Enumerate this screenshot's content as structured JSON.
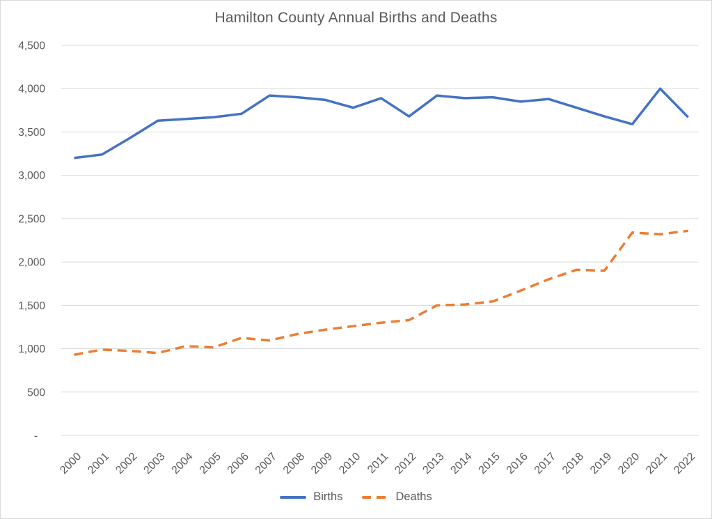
{
  "chart_data": {
    "type": "line",
    "title": "Hamilton County Annual Births and Deaths",
    "categories": [
      "2000",
      "2001",
      "2002",
      "2003",
      "2004",
      "2005",
      "2006",
      "2007",
      "2008",
      "2009",
      "2010",
      "2011",
      "2012",
      "2013",
      "2014",
      "2015",
      "2016",
      "2017",
      "2018",
      "2019",
      "2020",
      "2021",
      "2022"
    ],
    "series": [
      {
        "name": "Births",
        "color": "#4472C4",
        "line_style": "solid",
        "values": [
          3200,
          3240,
          3430,
          3630,
          3650,
          3670,
          3710,
          3920,
          3900,
          3870,
          3780,
          3890,
          3680,
          3920,
          3890,
          3900,
          3850,
          3880,
          3780,
          3680,
          3590,
          4000,
          3670
        ]
      },
      {
        "name": "Deaths",
        "color": "#ED7D31",
        "line_style": "dashed",
        "values": [
          930,
          990,
          975,
          950,
          1030,
          1015,
          1125,
          1095,
          1170,
          1220,
          1260,
          1300,
          1330,
          1500,
          1510,
          1545,
          1670,
          1800,
          1910,
          1900,
          2340,
          2320,
          2360
        ]
      }
    ],
    "ylim": [
      0,
      4500
    ],
    "ytick_step": 500,
    "ytick_labels": [
      "-",
      "500",
      "1,000",
      "1,500",
      "2,000",
      "2,500",
      "3,000",
      "3,500",
      "4,000",
      "4,500"
    ],
    "grid": "horizontal",
    "legend_position": "bottom",
    "x_label_rotation": -45
  },
  "style": {
    "text_color": "#595959",
    "gridline_color": "#D9D9D9",
    "frame_border_color": "#D9D9D9",
    "background": "#FFFFFF"
  }
}
